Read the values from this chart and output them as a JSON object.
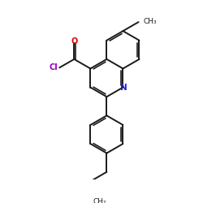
{
  "background_color": "#ffffff",
  "bond_color": "#1a1a1a",
  "N_color": "#2222cc",
  "O_color": "#dd0000",
  "Cl_color": "#9900bb",
  "bond_width": 1.4,
  "figsize": [
    2.5,
    2.5
  ],
  "dpi": 100,
  "xlim": [
    0,
    10
  ],
  "ylim": [
    0,
    10
  ]
}
